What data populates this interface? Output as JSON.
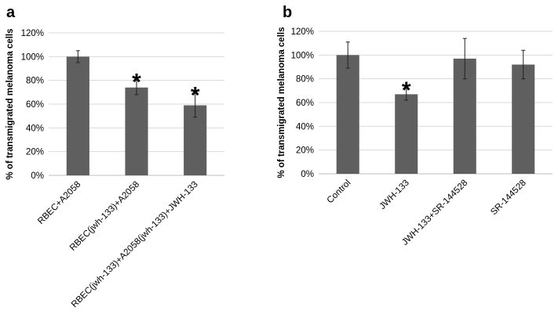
{
  "chart_data": [
    {
      "type": "bar",
      "panel_label": "a",
      "ylabel": "% of transmigrated melanoma cells",
      "ylim": [
        0,
        120
      ],
      "yticks": [
        "0%",
        "20%",
        "40%",
        "60%",
        "80%",
        "100%",
        "120%"
      ],
      "grid": true,
      "categories": [
        "RBEC+A2058",
        "RBEC(jwh-133)+A2058",
        "RBEC(jwh-133)+A2058(jwh-133)+JWH-133"
      ],
      "values": [
        100,
        74,
        59
      ],
      "errors": [
        5,
        6,
        10
      ],
      "significance": [
        "",
        "*",
        "*"
      ],
      "bar_color": "#5f5f5f"
    },
    {
      "type": "bar",
      "panel_label": "b",
      "ylabel": "% of transmigrated melanoma cells",
      "ylim": [
        0,
        120
      ],
      "yticks": [
        "0%",
        "20%",
        "40%",
        "60%",
        "80%",
        "100%",
        "120%"
      ],
      "grid": true,
      "categories": [
        "Control",
        "JWH-133",
        "JWH-133+SR-144528",
        "SR-144528"
      ],
      "values": [
        100,
        67,
        97,
        92
      ],
      "errors": [
        11,
        5,
        17,
        12
      ],
      "significance": [
        "",
        "*",
        "",
        ""
      ],
      "bar_color": "#5f5f5f"
    }
  ]
}
